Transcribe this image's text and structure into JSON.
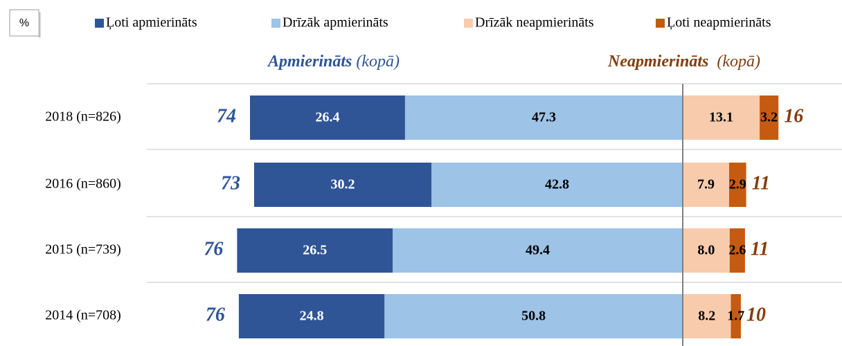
{
  "chart_data": {
    "type": "diverging_bar",
    "unit": "%",
    "header_left": {
      "title": "Apmierināts",
      "suffix": "(kopā)"
    },
    "header_right": {
      "title": "Neapmierināts",
      "suffix": "(kopā)"
    },
    "categories": [
      "2018 (n=826)",
      "2016 (n=860)",
      "2015 (n=739)",
      "2014 (n=708)"
    ],
    "series": [
      {
        "name": "Ļoti apmierināts",
        "color": "#2f5597",
        "side": "left",
        "values": [
          26.4,
          30.2,
          26.5,
          24.8
        ],
        "value_labels": [
          "26.4",
          "30.2",
          "26.5",
          "24.8"
        ]
      },
      {
        "name": "Drīzāk apmierināts",
        "color": "#9dc3e6",
        "side": "left",
        "values": [
          47.3,
          42.8,
          49.4,
          50.8
        ],
        "value_labels": [
          "47.3",
          "42.8",
          "49.4",
          "50.8"
        ]
      },
      {
        "name": "Drīzāk neapmierināts",
        "color": "#f8cbad",
        "side": "right",
        "values": [
          13.1,
          7.9,
          8.0,
          8.2
        ],
        "value_labels": [
          "13.1",
          "7.9",
          "8.0",
          "8.2"
        ]
      },
      {
        "name": "Ļoti neapmierināts",
        "color": "#c55a11",
        "side": "right",
        "values": [
          3.2,
          2.9,
          2.6,
          1.7
        ],
        "value_labels": [
          "3.2",
          "2.9",
          "2.6",
          "1.7"
        ]
      }
    ],
    "totals_left": [
      74,
      73,
      76,
      76
    ],
    "totals_right": [
      16,
      11,
      11,
      10
    ],
    "totals_left_color": "#2f5597",
    "totals_right_color": "#843c0c"
  }
}
